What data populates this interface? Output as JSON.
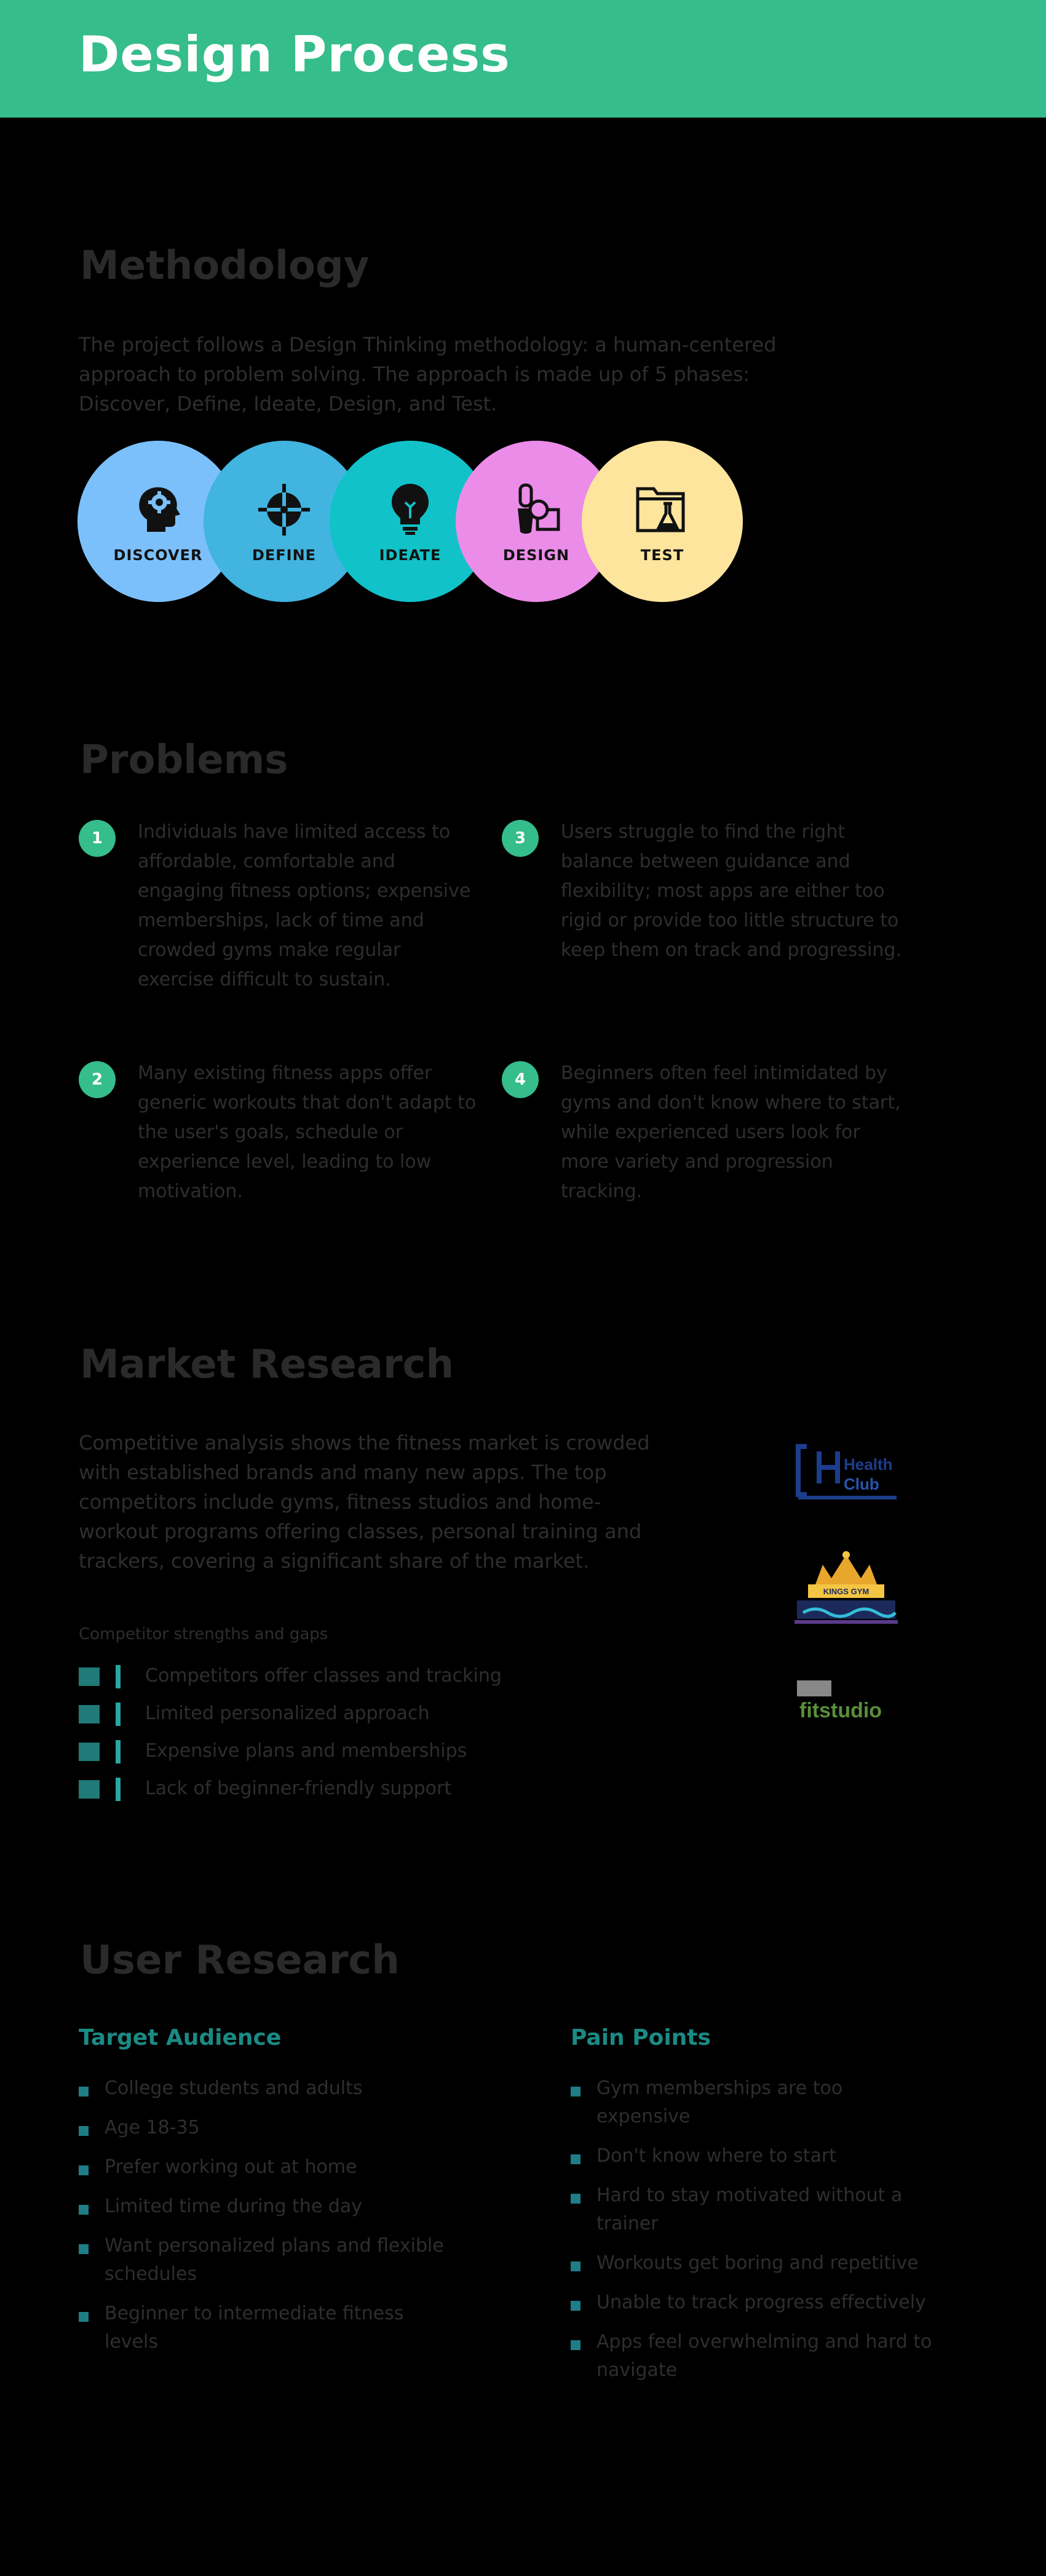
{
  "header": {
    "title": "Design Process"
  },
  "methodology": {
    "title": "Methodology",
    "text": "The project follows a Design Thinking methodology: a human-centered approach to problem solving. The approach is made up of 5 phases: Discover, Define, Ideate, Design, and Test.",
    "phases": [
      {
        "label": "DISCOVER",
        "icon": "head-gear-icon",
        "color": "#7cc0fb"
      },
      {
        "label": "DEFINE",
        "icon": "crosshair-icon",
        "color": "#41b4e0"
      },
      {
        "label": "IDEATE",
        "icon": "lightbulb-icon",
        "color": "#11c2c8"
      },
      {
        "label": "DESIGN",
        "icon": "brush-shapes-icon",
        "color": "#eb8ce9"
      },
      {
        "label": "TEST",
        "icon": "folder-flask-icon",
        "color": "#fde59d"
      }
    ]
  },
  "problems": {
    "title": "Problems",
    "items": [
      {
        "num": "1",
        "text": "Individuals have limited access to affordable, comfortable and engaging fitness options; expensive memberships, lack of time and crowded gyms make regular exercise difficult to sustain."
      },
      {
        "num": "2",
        "text": "Many existing fitness apps offer generic workouts that don't adapt to the user's goals, schedule or experience level, leading to low motivation."
      },
      {
        "num": "3",
        "text": "Users struggle to find the right balance between guidance and flexibility; most apps are either too rigid or provide too little structure to keep them on track and progressing."
      },
      {
        "num": "4",
        "text": "Beginners often feel intimidated by gyms and don't know where to start, while experienced users look for more variety and progression tracking."
      }
    ]
  },
  "market": {
    "title": "Market Research",
    "text": "Competitive analysis shows the fitness market is crowded with established brands and many new apps. The top competitors include gyms, fitness studios and home-workout programs offering classes, personal training and trackers, covering a significant share of the market.",
    "subtitle": "Competitor strengths and gaps",
    "items": [
      "Competitors offer classes and tracking",
      "Limited personalized approach",
      "Expensive plans and memberships",
      "Lack of beginner-friendly support"
    ],
    "logos": [
      {
        "name": "health-club-logo",
        "text": "HealthClub"
      },
      {
        "name": "crown-gym-logo",
        "text": "KINGS GYM"
      },
      {
        "name": "fit-studio-logo",
        "text": "fitstudio"
      }
    ]
  },
  "user_research": {
    "title": "User Research",
    "target": {
      "title": "Target Audience",
      "items": [
        "College students and adults",
        "Age 18-35",
        "Prefer working out at home",
        "Limited time during the day",
        "Want personalized plans and flexible schedules",
        "Beginner to intermediate fitness levels"
      ]
    },
    "pain": {
      "title": "Pain Points",
      "items": [
        "Gym memberships are too expensive",
        "Don't know where to start",
        "Hard to stay motivated without a trainer",
        "Workouts get boring and repetitive",
        "Unable to track progress effectively",
        "Apps feel overwhelming and hard to navigate"
      ]
    }
  }
}
